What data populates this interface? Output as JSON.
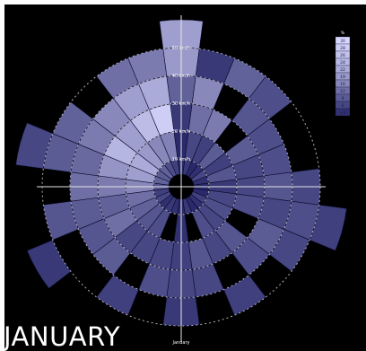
{
  "title": "JANUARY",
  "bottom_axis_label": "January",
  "colors": {
    "background": "#000000",
    "ring_lines": "#cfcfcf",
    "low": "#16165a",
    "high": "#d8d8ff"
  },
  "chart_data": {
    "type": "heatmap",
    "subtype": "polar-wind-rose",
    "title": "JANUARY",
    "sectors": 24,
    "radial_bands": 6,
    "ring_labels": [
      "10 km/h",
      "20 km/h",
      "30 km/h",
      "40 km/h",
      "50 km/h"
    ],
    "legend": {
      "title": "%",
      "labels": [
        "30",
        "28",
        "26",
        "24",
        "22",
        "19",
        "16",
        "12",
        "9",
        "6",
        "<3"
      ]
    },
    "grid": true,
    "values": [
      [
        2,
        2,
        4,
        10,
        19,
        20
      ],
      [
        4,
        6,
        12,
        16,
        4,
        0
      ],
      [
        2,
        5,
        14,
        0,
        10,
        0
      ],
      [
        3,
        9,
        0,
        8,
        7,
        0
      ],
      [
        6,
        5,
        9,
        7,
        0,
        0
      ],
      [
        3,
        8,
        6,
        7,
        0,
        0
      ],
      [
        2,
        4,
        6,
        8,
        6,
        0
      ],
      [
        2,
        6,
        7,
        6,
        7,
        5
      ],
      [
        5,
        7,
        0,
        9,
        6,
        0
      ],
      [
        3,
        6,
        8,
        7,
        0,
        0
      ],
      [
        2,
        7,
        6,
        0,
        5,
        0
      ],
      [
        4,
        0,
        8,
        6,
        0,
        0
      ],
      [
        2,
        3,
        5,
        6,
        4,
        0
      ],
      [
        3,
        0,
        6,
        7,
        0,
        0
      ],
      [
        4,
        7,
        6,
        0,
        5,
        0
      ],
      [
        3,
        8,
        6,
        9,
        0,
        0
      ],
      [
        6,
        10,
        12,
        8,
        0,
        4
      ],
      [
        5,
        12,
        10,
        9,
        8,
        0
      ],
      [
        8,
        16,
        14,
        12,
        0,
        0
      ],
      [
        10,
        20,
        18,
        11,
        9,
        6
      ],
      [
        9,
        22,
        24,
        14,
        10,
        0
      ],
      [
        10,
        19,
        20,
        16,
        0,
        0
      ],
      [
        7,
        16,
        25,
        20,
        12,
        0
      ],
      [
        5,
        15,
        28,
        22,
        14,
        0
      ]
    ]
  }
}
